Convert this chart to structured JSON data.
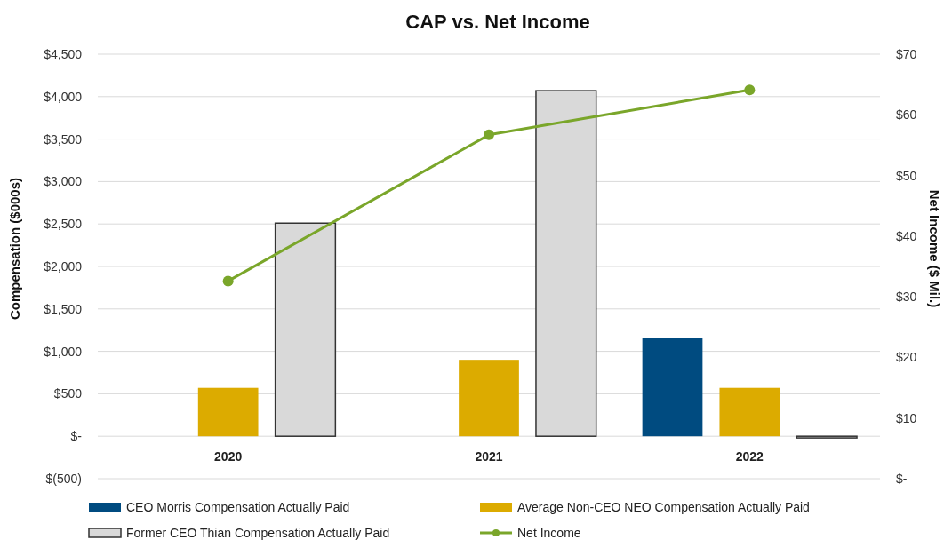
{
  "chart_data": {
    "type": "bar",
    "title": "CAP vs. Net Income",
    "ylabel": "Compensation ($000s)",
    "y2label": "Net Income ($ Mil.)",
    "categories": [
      "2020",
      "2021",
      "2022"
    ],
    "series": [
      {
        "name": "CEO Morris Compensation Actually Paid",
        "color": "#004b80",
        "values": [
          null,
          null,
          1160
        ]
      },
      {
        "name": "Average Non-CEO NEO Compensation Actually Paid",
        "color": "#dcab00",
        "values": [
          570,
          900,
          570
        ]
      },
      {
        "name": "Former CEO Thian Compensation Actually Paid",
        "color": "#d9d9d9",
        "values": [
          2510,
          4070,
          -20
        ]
      },
      {
        "name": "Net Income",
        "type": "line",
        "axis": "y2",
        "color": "#7aa62a",
        "marker": "circle",
        "values": [
          32.6,
          56.7,
          64.1
        ]
      }
    ],
    "ylim": [
      -500,
      4500
    ],
    "yticks": [
      {
        "value": -500,
        "label": "$(500)"
      },
      {
        "value": 0,
        "label": "$-"
      },
      {
        "value": 500,
        "label": "$500"
      },
      {
        "value": 1000,
        "label": "$1,000"
      },
      {
        "value": 1500,
        "label": "$1,500"
      },
      {
        "value": 2000,
        "label": "$2,000"
      },
      {
        "value": 2500,
        "label": "$2,500"
      },
      {
        "value": 3000,
        "label": "$3,000"
      },
      {
        "value": 3500,
        "label": "$3,500"
      },
      {
        "value": 4000,
        "label": "$4,000"
      },
      {
        "value": 4500,
        "label": "$4,500"
      }
    ],
    "y2lim": [
      0,
      70
    ],
    "y2ticks": [
      {
        "value": 0,
        "label": "$-"
      },
      {
        "value": 10,
        "label": "$10"
      },
      {
        "value": 20,
        "label": "$20"
      },
      {
        "value": 30,
        "label": "$30"
      },
      {
        "value": 40,
        "label": "$40"
      },
      {
        "value": 50,
        "label": "$50"
      },
      {
        "value": 60,
        "label": "$60"
      },
      {
        "value": 70,
        "label": "$70"
      }
    ],
    "grid": "y",
    "legend": "bottom"
  }
}
